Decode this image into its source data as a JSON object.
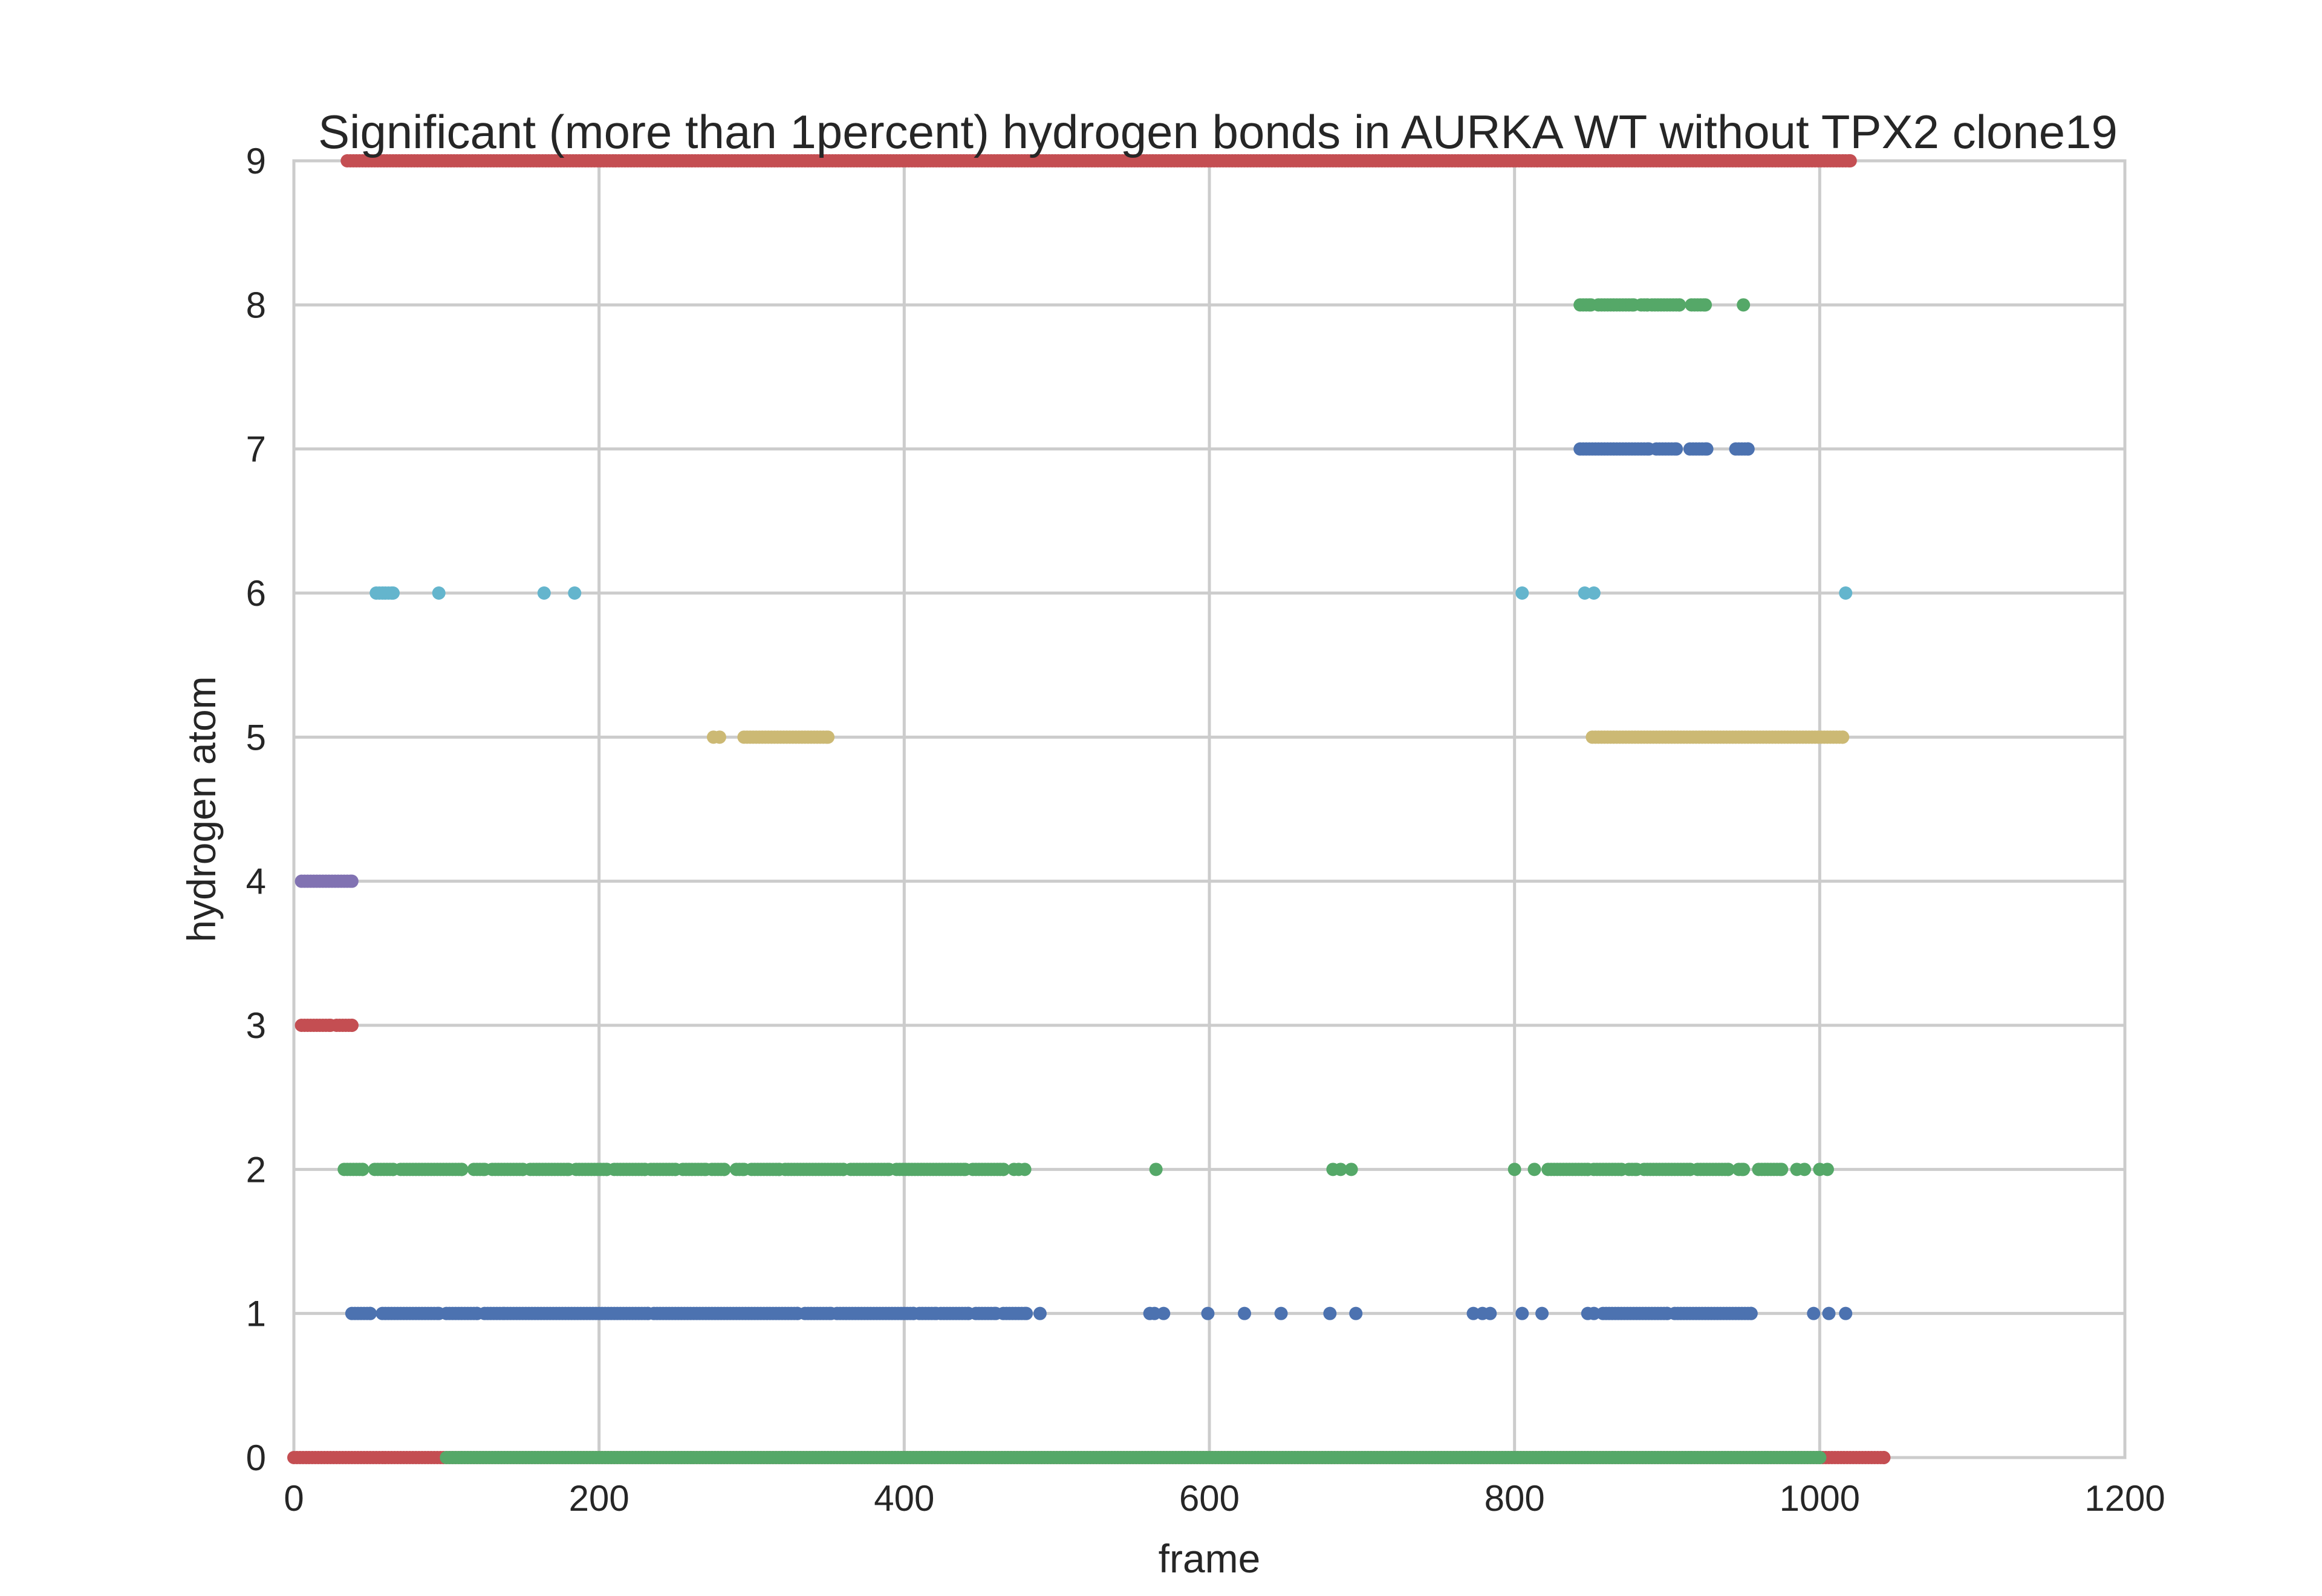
{
  "chart_data": {
    "type": "scatter",
    "title": "Significant (more than 1percent) hydrogen bonds in AURKA WT without TPX2 clone19",
    "xlabel": "frame",
    "ylabel": "hydrogen atom",
    "xlim": [
      0,
      1200
    ],
    "ylim": [
      0,
      9
    ],
    "x_ticks": [
      "0",
      "200",
      "400",
      "600",
      "800",
      "1000",
      "1200"
    ],
    "y_ticks": [
      "0",
      "1",
      "2",
      "3",
      "4",
      "5",
      "6",
      "7",
      "8",
      "9"
    ],
    "grid": true,
    "legend": "none",
    "colors": {
      "red": "#c44e52",
      "blue": "#4c72b0",
      "green": "#55a868",
      "purple": "#8172b2",
      "yellow": "#ccb974",
      "cyan": "#64b5cd"
    },
    "series": [
      {
        "color": "red",
        "y": 0,
        "runs": [
          [
            0,
            1042
          ]
        ]
      },
      {
        "color": "green",
        "y": 0,
        "runs": [
          [
            100,
            1000
          ]
        ]
      },
      {
        "color": "blue",
        "y": 1,
        "runs": [
          [
            38,
            50
          ],
          [
            58,
            95
          ],
          [
            100,
            120
          ],
          [
            125,
            138
          ],
          [
            140,
            232
          ],
          [
            236,
            330
          ],
          [
            335,
            352
          ],
          [
            356,
            406
          ],
          [
            410,
            421
          ],
          [
            424,
            442
          ],
          [
            447,
            460
          ],
          [
            465,
            480
          ]
        ],
        "points": [
          489,
          561,
          564,
          570,
          599,
          623,
          647,
          679,
          696,
          773,
          779,
          784,
          805,
          818,
          848,
          852,
          996,
          1006,
          1017
        ],
        "runs2": [
          [
            858,
            900
          ],
          [
            905,
            955
          ]
        ]
      },
      {
        "color": "green",
        "y": 2,
        "runs": [
          [
            33,
            45
          ],
          [
            53,
            65
          ],
          [
            70,
            110
          ],
          [
            118,
            125
          ],
          [
            130,
            150
          ],
          [
            155,
            180
          ],
          [
            185,
            205
          ],
          [
            210,
            230
          ],
          [
            234,
            250
          ],
          [
            255,
            270
          ],
          [
            274,
            282
          ],
          [
            290,
            295
          ],
          [
            300,
            318
          ],
          [
            322,
            360
          ],
          [
            365,
            390
          ],
          [
            395,
            440
          ],
          [
            445,
            465
          ]
        ],
        "points": [
          472,
          475,
          479,
          565,
          681,
          686,
          693,
          800,
          813,
          985,
          990,
          1000,
          1005
        ],
        "runs2": [
          [
            822,
            848
          ],
          [
            852,
            870
          ],
          [
            875,
            880
          ],
          [
            885,
            915
          ],
          [
            920,
            940
          ],
          [
            947,
            950
          ],
          [
            960,
            975
          ]
        ]
      },
      {
        "color": "red",
        "y": 3,
        "runs": [
          [
            5,
            24
          ],
          [
            28,
            38
          ]
        ]
      },
      {
        "color": "purple",
        "y": 4,
        "runs": [
          [
            5,
            38
          ]
        ]
      },
      {
        "color": "yellow",
        "y": 5,
        "runs": [
          [
            295,
            350
          ],
          [
            851,
            1015
          ]
        ],
        "points": [
          275,
          279
        ]
      },
      {
        "color": "cyan",
        "y": 6,
        "runs": [
          [
            54,
            65
          ]
        ],
        "points": [
          95,
          164,
          184,
          805,
          846,
          852,
          1017
        ]
      },
      {
        "color": "blue",
        "y": 7,
        "runs": [
          [
            843,
            888
          ],
          [
            893,
            906
          ],
          [
            915,
            926
          ],
          [
            945,
            953
          ]
        ]
      },
      {
        "color": "green",
        "y": 8,
        "runs": [
          [
            843,
            850
          ],
          [
            855,
            878
          ],
          [
            883,
            887
          ],
          [
            890,
            908
          ],
          [
            916,
            925
          ]
        ],
        "points": [
          950
        ]
      },
      {
        "color": "red",
        "y": 9,
        "runs": [
          [
            35,
            1020
          ]
        ]
      }
    ]
  }
}
